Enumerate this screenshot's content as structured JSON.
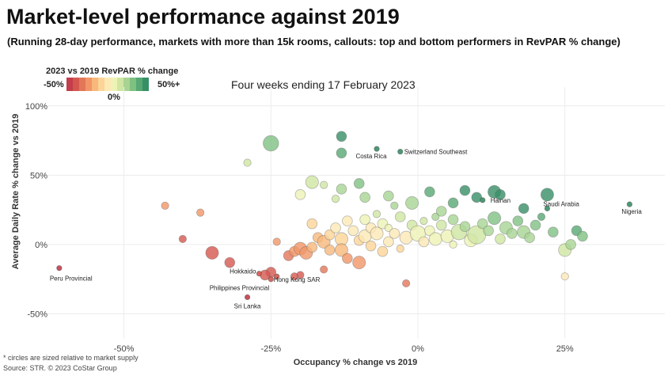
{
  "header": {
    "title": "Market-level performance against 2019",
    "subtitle": "(Running 28-day performance, markets with more than 15k rooms, callouts: top and bottom performers in RevPAR % change)",
    "period": "Four weeks ending 17 February 2023"
  },
  "legend": {
    "title": "2023 vs 2019 RevPAR % change",
    "min_label": "-50%",
    "max_label": "50%+",
    "mid_label": "0%",
    "colors": [
      "#c43d4b",
      "#d4574f",
      "#e37659",
      "#f19667",
      "#f8b87c",
      "#fcd497",
      "#fce9b5",
      "#eef2b5",
      "#cfe6a2",
      "#a8d493",
      "#7fc083",
      "#57a873",
      "#378f66"
    ]
  },
  "footer": {
    "footnote": "* circles are sized relative to market supply",
    "source": "Source: STR. © 2023 CoStar Group"
  },
  "chart_data": {
    "type": "scatter",
    "xlabel": "Occupancy % change vs 2019",
    "ylabel": "Average Daily Rate % change vs 2019",
    "xlim": [
      -63,
      42
    ],
    "ylim": [
      -68,
      105
    ],
    "xticks": [
      -50,
      -25,
      0,
      25
    ],
    "xtick_labels": [
      "-50%",
      "-25%",
      "0%",
      "25%"
    ],
    "yticks": [
      -50,
      0,
      50,
      100
    ],
    "ytick_labels": [
      "-50%",
      "0%",
      "50%",
      "100%"
    ],
    "grid": true,
    "color_encoding": "RevPAR % change vs 2019",
    "size_encoding": "market supply",
    "callouts": [
      {
        "name": "Peru Provincial",
        "x": -61,
        "y": -17,
        "revpar": -68
      },
      {
        "name": "Hokkaido",
        "x": -27,
        "y": -21,
        "revpar": -42
      },
      {
        "name": "Philippines Provincial",
        "x": -25,
        "y": -25,
        "revpar": -44
      },
      {
        "name": "Hong Kong SAR",
        "x": -24,
        "y": -23,
        "revpar": -41
      },
      {
        "name": "Sri Lanka",
        "x": -29,
        "y": -38,
        "revpar": -56
      },
      {
        "name": "Costa Rica",
        "x": -7,
        "y": 69,
        "revpar": 58
      },
      {
        "name": "Switzerland Southeast",
        "x": -3,
        "y": 67,
        "revpar": 62
      },
      {
        "name": "Hainan",
        "x": 11,
        "y": 32,
        "revpar": 47
      },
      {
        "name": "Saudi Arabia",
        "x": 22,
        "y": 26,
        "revpar": 54
      },
      {
        "name": "Nigeria",
        "x": 36,
        "y": 29,
        "revpar": 75
      }
    ],
    "points": [
      {
        "x": -43,
        "y": 28,
        "revpar": -27,
        "size": 1
      },
      {
        "x": -37,
        "y": 23,
        "revpar": -23,
        "size": 1
      },
      {
        "x": -29,
        "y": 59,
        "revpar": 13,
        "size": 1
      },
      {
        "x": -25,
        "y": 73,
        "revpar": 30,
        "size": 4
      },
      {
        "x": -24,
        "y": 2,
        "revpar": -23,
        "size": 1
      },
      {
        "x": -25,
        "y": -20,
        "revpar": -40,
        "size": 2
      },
      {
        "x": -26,
        "y": -22,
        "revpar": -42,
        "size": 2
      },
      {
        "x": -35,
        "y": -6,
        "revpar": -39,
        "size": 3
      },
      {
        "x": -32,
        "y": -13,
        "revpar": -41,
        "size": 2
      },
      {
        "x": -40,
        "y": 4,
        "revpar": -38,
        "size": 1
      },
      {
        "x": -22,
        "y": -8,
        "revpar": -32,
        "size": 2
      },
      {
        "x": -21,
        "y": -5,
        "revpar": -27,
        "size": 2
      },
      {
        "x": -20,
        "y": -3,
        "revpar": -24,
        "size": 3
      },
      {
        "x": -19,
        "y": -6,
        "revpar": -24,
        "size": 3
      },
      {
        "x": -18,
        "y": -2,
        "revpar": -20,
        "size": 2
      },
      {
        "x": -20,
        "y": -22,
        "revpar": -38,
        "size": 1
      },
      {
        "x": -21,
        "y": -23,
        "revpar": -39,
        "size": 1
      },
      {
        "x": -18,
        "y": 15,
        "revpar": -6,
        "size": 2
      },
      {
        "x": -17,
        "y": 5,
        "revpar": -13,
        "size": 2
      },
      {
        "x": -16,
        "y": 2,
        "revpar": -14,
        "size": 3
      },
      {
        "x": -15,
        "y": 7,
        "revpar": -9,
        "size": 2
      },
      {
        "x": -15,
        "y": -4,
        "revpar": -19,
        "size": 2
      },
      {
        "x": -16,
        "y": -18,
        "revpar": -31,
        "size": 1
      },
      {
        "x": -14,
        "y": 12,
        "revpar": -4,
        "size": 2
      },
      {
        "x": -13,
        "y": 4,
        "revpar": -9,
        "size": 3
      },
      {
        "x": -13,
        "y": -4,
        "revpar": -16,
        "size": 3
      },
      {
        "x": -12,
        "y": 17,
        "revpar": 3,
        "size": 2
      },
      {
        "x": -12,
        "y": -10,
        "revpar": -21,
        "size": 2
      },
      {
        "x": -11,
        "y": 10,
        "revpar": -2,
        "size": 2
      },
      {
        "x": -10,
        "y": 3,
        "revpar": -7,
        "size": 2
      },
      {
        "x": -10,
        "y": -13,
        "revpar": -22,
        "size": 3
      },
      {
        "x": -9,
        "y": 18,
        "revpar": 7,
        "size": 2
      },
      {
        "x": -9,
        "y": 6,
        "revpar": -3,
        "size": 3
      },
      {
        "x": -8,
        "y": 12,
        "revpar": 3,
        "size": 2
      },
      {
        "x": -8,
        "y": -1,
        "revpar": -9,
        "size": 2
      },
      {
        "x": -7,
        "y": 22,
        "revpar": 13,
        "size": 1
      },
      {
        "x": -7,
        "y": 8,
        "revpar": 0,
        "size": 3
      },
      {
        "x": -6,
        "y": 15,
        "revpar": 8,
        "size": 2
      },
      {
        "x": -6,
        "y": -5,
        "revpar": -11,
        "size": 2
      },
      {
        "x": -5,
        "y": 2,
        "revpar": -3,
        "size": 2
      },
      {
        "x": -5,
        "y": 12,
        "revpar": 6,
        "size": 1
      },
      {
        "x": -4,
        "y": 8,
        "revpar": 4,
        "size": 2
      },
      {
        "x": -3,
        "y": 20,
        "revpar": 16,
        "size": 2
      },
      {
        "x": -3,
        "y": -3,
        "revpar": -6,
        "size": 1
      },
      {
        "x": -2,
        "y": 5,
        "revpar": 3,
        "size": 3
      },
      {
        "x": -2,
        "y": -28,
        "revpar": -30,
        "size": 1
      },
      {
        "x": -1,
        "y": 14,
        "revpar": 13,
        "size": 2
      },
      {
        "x": 0,
        "y": 8,
        "revpar": 8,
        "size": 4
      },
      {
        "x": 1,
        "y": 2,
        "revpar": 3,
        "size": 2
      },
      {
        "x": 1,
        "y": 17,
        "revpar": 18,
        "size": 1
      },
      {
        "x": 2,
        "y": 10,
        "revpar": 12,
        "size": 2
      },
      {
        "x": 3,
        "y": 4,
        "revpar": 7,
        "size": 3
      },
      {
        "x": 3,
        "y": 20,
        "revpar": 24,
        "size": 1
      },
      {
        "x": 4,
        "y": 14,
        "revpar": 19,
        "size": 2
      },
      {
        "x": 5,
        "y": 6,
        "revpar": 11,
        "size": 3
      },
      {
        "x": 6,
        "y": 18,
        "revpar": 25,
        "size": 2
      },
      {
        "x": 6,
        "y": 0,
        "revpar": 6,
        "size": 1
      },
      {
        "x": 7,
        "y": 9,
        "revpar": 17,
        "size": 4
      },
      {
        "x": 8,
        "y": 13,
        "revpar": 22,
        "size": 2
      },
      {
        "x": 9,
        "y": 3,
        "revpar": 12,
        "size": 3
      },
      {
        "x": 10,
        "y": 7,
        "revpar": 18,
        "size": 5
      },
      {
        "x": 11,
        "y": 15,
        "revpar": 28,
        "size": 2
      },
      {
        "x": 12,
        "y": 10,
        "revpar": 23,
        "size": 2
      },
      {
        "x": 13,
        "y": 19,
        "revpar": 34,
        "size": 3
      },
      {
        "x": 14,
        "y": 4,
        "revpar": 19,
        "size": 2
      },
      {
        "x": 15,
        "y": 12,
        "revpar": 29,
        "size": 3
      },
      {
        "x": 16,
        "y": 8,
        "revpar": 25,
        "size": 2
      },
      {
        "x": 17,
        "y": 17,
        "revpar": 37,
        "size": 2
      },
      {
        "x": 18,
        "y": 9,
        "revpar": 29,
        "size": 3
      },
      {
        "x": 19,
        "y": 5,
        "revpar": 25,
        "size": 2
      },
      {
        "x": 20,
        "y": 14,
        "revpar": 37,
        "size": 2
      },
      {
        "x": 21,
        "y": 20,
        "revpar": 45,
        "size": 1
      },
      {
        "x": 23,
        "y": 9,
        "revpar": 34,
        "size": 2
      },
      {
        "x": 25,
        "y": -4,
        "revpar": 20,
        "size": 3
      },
      {
        "x": 26,
        "y": 0,
        "revpar": 26,
        "size": 2
      },
      {
        "x": 27,
        "y": 10,
        "revpar": 40,
        "size": 2
      },
      {
        "x": 28,
        "y": 6,
        "revpar": 36,
        "size": 2
      },
      {
        "x": 25,
        "y": -23,
        "revpar": -4,
        "size": 1
      },
      {
        "x": 8,
        "y": 39,
        "revpar": 50,
        "size": 2
      },
      {
        "x": 10,
        "y": 34,
        "revpar": 47,
        "size": 2
      },
      {
        "x": 13,
        "y": 38,
        "revpar": 56,
        "size": 3
      },
      {
        "x": 14,
        "y": 36,
        "revpar": 55,
        "size": 2
      },
      {
        "x": 18,
        "y": 26,
        "revpar": 49,
        "size": 2
      },
      {
        "x": 22,
        "y": 36,
        "revpar": 66,
        "size": 3
      },
      {
        "x": 6,
        "y": 30,
        "revpar": 38,
        "size": 2
      },
      {
        "x": 4,
        "y": 24,
        "revpar": 29,
        "size": 2
      },
      {
        "x": -1,
        "y": 30,
        "revpar": 29,
        "size": 3
      },
      {
        "x": -4,
        "y": 28,
        "revpar": 23,
        "size": 1
      },
      {
        "x": -9,
        "y": 34,
        "revpar": 22,
        "size": 2
      },
      {
        "x": -13,
        "y": 40,
        "revpar": 22,
        "size": 2
      },
      {
        "x": -14,
        "y": 33,
        "revpar": 14,
        "size": 1
      },
      {
        "x": -18,
        "y": 45,
        "revpar": 19,
        "size": 3
      },
      {
        "x": -20,
        "y": 36,
        "revpar": 9,
        "size": 2
      },
      {
        "x": -13,
        "y": 78,
        "revpar": 55,
        "size": 2
      },
      {
        "x": -13,
        "y": 66,
        "revpar": 45,
        "size": 2
      },
      {
        "x": -16,
        "y": 43,
        "revpar": 20,
        "size": 1
      },
      {
        "x": -10,
        "y": 44,
        "revpar": 30,
        "size": 2
      },
      {
        "x": -5,
        "y": 35,
        "revpar": 28,
        "size": 2
      },
      {
        "x": 2,
        "y": 38,
        "revpar": 41,
        "size": 2
      }
    ]
  }
}
